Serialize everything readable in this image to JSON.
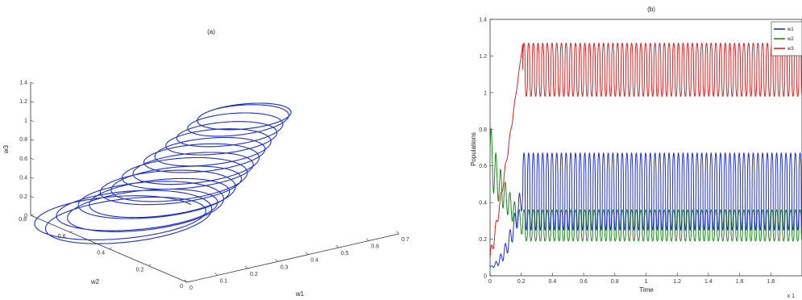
{
  "chart_data": [
    {
      "panel_label": "(a)",
      "type": "line",
      "projection": "3d",
      "xlabel": "w1",
      "ylabel": "w2",
      "zlabel": "w3",
      "x_ticks": [
        "0",
        "0.1",
        "0.2",
        "0.3",
        "0.4",
        "0.5",
        "0.6",
        "0.7"
      ],
      "y_ticks": [
        "0",
        "0.2",
        "0.4",
        "0.6",
        "0.8"
      ],
      "z_ticks": [
        "0",
        "0.2",
        "0.4",
        "0.6",
        "0.8",
        "1",
        "1.2",
        "1.4"
      ],
      "xlim": [
        0,
        0.7
      ],
      "ylim": [
        0,
        0.8
      ],
      "zlim": [
        0,
        1.4
      ],
      "color": "#1f2fd0",
      "trajectory": {
        "start": {
          "w1": 0.15,
          "w2": 0.6,
          "w3": 0.0
        },
        "end": {
          "w1": 0.35,
          "w2": 0.25,
          "w3": 1.27
        },
        "oscillation_amplitude_w1": 0.25,
        "oscillation_amplitude_w2": 0.2,
        "turns": 18
      }
    },
    {
      "panel_label": "(b)",
      "type": "line",
      "xlabel": "Time",
      "ylabel": "Populations",
      "x_ticks": [
        "0",
        "0.2",
        "0.4",
        "0.6",
        "0.8",
        "1",
        "1.2",
        "1.4",
        "1.6",
        "1.8"
      ],
      "y_ticks": [
        "0",
        "0.2",
        "0.4",
        "0.6",
        "0.8",
        "1",
        "1.2",
        "1.4"
      ],
      "xlim": [
        0,
        2
      ],
      "ylim": [
        0,
        1.4
      ],
      "axis_multiplier": "x 1",
      "legend_placement": "top-right",
      "series": [
        {
          "name": "w1",
          "color": "#1f2fd0",
          "initial": 0.05,
          "steady_min": 0.25,
          "steady_max": 0.67,
          "transient_end": 0.21
        },
        {
          "name": "w2",
          "color": "#1e8a1e",
          "initial": 0.7,
          "steady_min": 0.19,
          "steady_max": 0.36,
          "transient_end": 0.21
        },
        {
          "name": "w3",
          "color": "#e02020",
          "initial": 0.1,
          "steady_min": 0.98,
          "steady_max": 1.27,
          "transient_end": 0.21
        }
      ],
      "cycle_period": 0.03
    }
  ]
}
